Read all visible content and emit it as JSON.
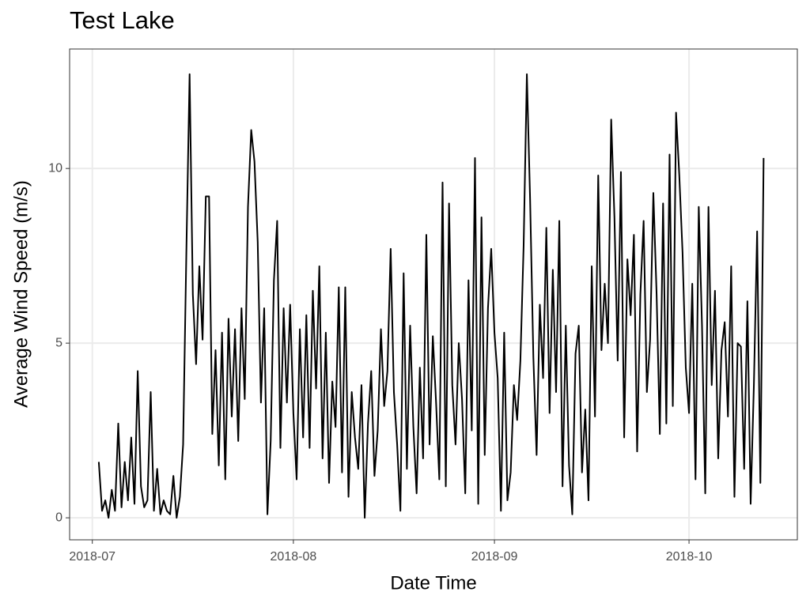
{
  "chart_data": {
    "type": "line",
    "title": "Test Lake",
    "x_label": "Date Time",
    "y_label": "Average Wind Speed (m/s)",
    "color": "#000000",
    "grid": true,
    "xlim": [
      -3.5,
      108.7
    ],
    "ylim": [
      -0.63,
      13.42
    ],
    "xticks": [
      {
        "value": 0,
        "label": "2018-07"
      },
      {
        "value": 31,
        "label": "2018-08"
      },
      {
        "value": 62,
        "label": "2018-09"
      },
      {
        "value": 92,
        "label": "2018-10"
      }
    ],
    "yticks": [
      0,
      5,
      10
    ],
    "x": [
      1,
      1.5,
      2,
      2.5,
      3,
      3.5,
      4,
      4.5,
      5,
      5.5,
      6,
      6.5,
      7,
      7.5,
      8,
      8.5,
      9,
      9.5,
      10,
      10.5,
      11,
      11.5,
      12,
      12.5,
      13,
      13.5,
      14,
      14.5,
      15,
      15.5,
      16,
      16.5,
      17,
      17.5,
      18,
      18.5,
      19,
      19.5,
      20,
      20.5,
      21,
      21.5,
      22,
      22.5,
      23,
      23.5,
      24,
      24.5,
      25,
      25.5,
      26,
      26.5,
      27,
      27.5,
      28,
      28.5,
      29,
      29.5,
      30,
      30.5,
      31,
      31.5,
      32,
      32.5,
      33,
      33.5,
      34,
      34.5,
      35,
      35.5,
      36,
      36.5,
      37,
      37.5,
      38,
      38.5,
      39,
      39.5,
      40,
      40.5,
      41,
      41.5,
      42,
      42.5,
      43,
      43.5,
      44,
      44.5,
      45,
      45.5,
      46,
      46.5,
      47,
      47.5,
      48,
      48.5,
      49,
      49.5,
      50,
      50.5,
      51,
      51.5,
      52,
      52.5,
      53,
      53.5,
      54,
      54.5,
      55,
      55.5,
      56,
      56.5,
      57,
      57.5,
      58,
      58.5,
      59,
      59.5,
      60,
      60.5,
      61,
      61.5,
      62,
      62.5,
      63,
      63.5,
      64,
      64.5,
      65,
      65.5,
      66,
      66.5,
      67,
      67.5,
      68,
      68.5,
      69,
      69.5,
      70,
      70.5,
      71,
      71.5,
      72,
      72.5,
      73,
      73.5,
      74,
      74.5,
      75,
      75.5,
      76,
      76.5,
      77,
      77.5,
      78,
      78.5,
      79,
      79.5,
      80,
      80.5,
      81,
      81.5,
      82,
      82.5,
      83,
      83.5,
      84,
      84.5,
      85,
      85.5,
      86,
      86.5,
      87,
      87.5,
      88,
      88.5,
      89,
      89.5,
      90,
      90.5,
      91,
      91.5,
      92,
      92.5,
      93,
      93.5,
      94,
      94.5,
      95,
      95.5,
      96,
      96.5,
      97,
      97.5,
      98,
      98.5,
      99,
      99.5,
      100,
      100.5,
      101,
      101.5,
      102,
      102.5,
      103,
      103.5
    ],
    "values": [
      1.6,
      0.2,
      0.5,
      0.0,
      0.8,
      0.2,
      2.7,
      0.3,
      1.6,
      0.5,
      2.3,
      0.4,
      4.2,
      0.9,
      0.3,
      0.5,
      3.6,
      0.2,
      1.4,
      0.1,
      0.5,
      0.2,
      0.1,
      1.2,
      0.0,
      0.6,
      2.1,
      7.6,
      12.7,
      6.4,
      4.4,
      7.2,
      5.1,
      9.2,
      9.2,
      2.4,
      4.8,
      1.5,
      5.3,
      1.1,
      5.7,
      2.9,
      5.4,
      2.2,
      6.0,
      3.4,
      8.9,
      11.1,
      10.2,
      7.9,
      3.3,
      6.0,
      0.1,
      2.2,
      6.8,
      8.5,
      2.0,
      6.0,
      3.3,
      6.1,
      3.0,
      1.1,
      5.4,
      2.3,
      5.8,
      2.0,
      6.5,
      3.7,
      7.2,
      1.7,
      5.3,
      1.0,
      3.9,
      2.6,
      6.6,
      1.3,
      6.6,
      0.6,
      3.6,
      2.3,
      1.4,
      3.8,
      0.0,
      2.7,
      4.2,
      1.2,
      2.5,
      5.4,
      3.2,
      4.2,
      7.7,
      3.6,
      2.1,
      0.2,
      7.0,
      1.4,
      5.5,
      2.6,
      0.7,
      4.3,
      1.7,
      8.1,
      2.1,
      5.2,
      3.3,
      1.1,
      9.6,
      0.9,
      9.0,
      3.8,
      2.1,
      5.0,
      3.4,
      0.7,
      6.8,
      2.5,
      10.3,
      0.4,
      8.6,
      1.8,
      6.0,
      7.7,
      5.3,
      4.0,
      0.2,
      5.3,
      0.5,
      1.3,
      3.8,
      2.8,
      4.5,
      7.8,
      12.7,
      9.1,
      4.6,
      1.8,
      6.1,
      4.0,
      8.3,
      3.0,
      7.1,
      3.6,
      8.5,
      0.9,
      5.5,
      1.5,
      0.1,
      4.7,
      5.5,
      1.3,
      3.1,
      0.5,
      7.2,
      2.9,
      9.8,
      4.8,
      6.7,
      5.0,
      11.4,
      8.6,
      4.5,
      9.9,
      2.3,
      7.4,
      5.8,
      8.1,
      1.9,
      6.4,
      8.5,
      3.6,
      5.1,
      9.3,
      6.4,
      2.4,
      9.0,
      2.7,
      10.4,
      3.2,
      11.6,
      9.8,
      7.6,
      4.3,
      3.0,
      6.7,
      1.1,
      8.9,
      5.5,
      0.7,
      8.9,
      3.8,
      6.5,
      1.7,
      4.8,
      5.6,
      2.9,
      7.2,
      0.6,
      5.0,
      4.9,
      1.4,
      6.2,
      0.4,
      3.8,
      8.2,
      1.0,
      10.3
    ]
  }
}
